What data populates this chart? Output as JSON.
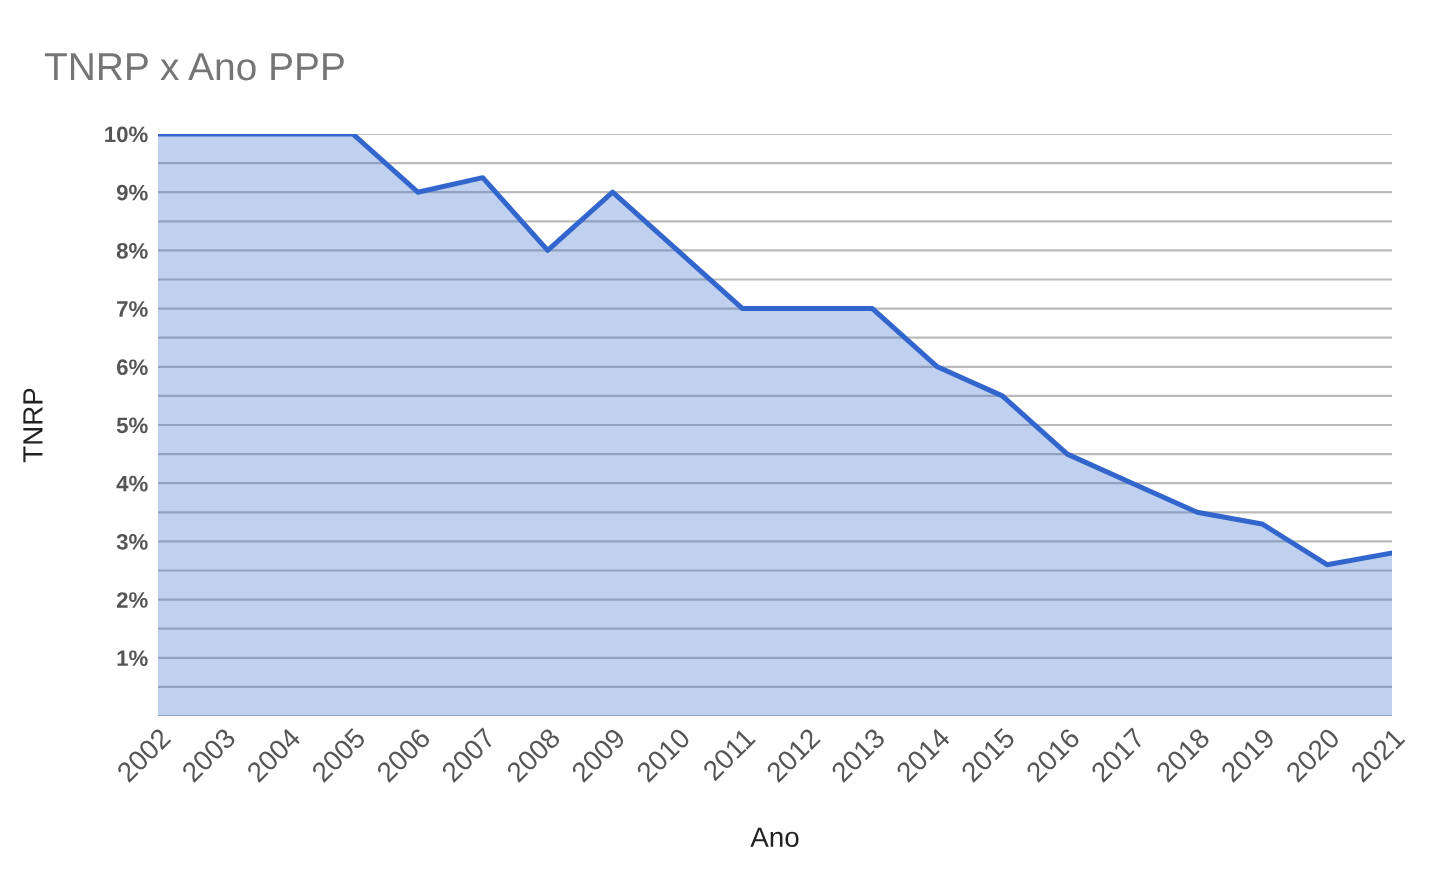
{
  "chart_data": {
    "type": "area",
    "title": "TNRP x Ano PPP",
    "xlabel": "Ano",
    "ylabel": "TNRP",
    "categories": [
      "2002",
      "2003",
      "2004",
      "2005",
      "2006",
      "2007",
      "2008",
      "2009",
      "2010",
      "2011",
      "2012",
      "2013",
      "2014",
      "2015",
      "2016",
      "2017",
      "2018",
      "2019",
      "2020",
      "2021"
    ],
    "series": [
      {
        "color": "#3366cc",
        "values": [
          10,
          10,
          10,
          10,
          9,
          9.25,
          8,
          9,
          8,
          7,
          7,
          7,
          6,
          5.5,
          4.5,
          4,
          3.5,
          3.3,
          2.6,
          2.8
        ]
      }
    ],
    "ylim": [
      0,
      10
    ],
    "yticks": [
      {
        "value": 0,
        "label": null
      },
      {
        "value": 0.5,
        "label": null
      },
      {
        "value": 1,
        "label": "1%"
      },
      {
        "value": 1.5,
        "label": null
      },
      {
        "value": 2,
        "label": "2%"
      },
      {
        "value": 2.5,
        "label": null
      },
      {
        "value": 3,
        "label": "3%"
      },
      {
        "value": 3.5,
        "label": null
      },
      {
        "value": 4,
        "label": "4%"
      },
      {
        "value": 4.5,
        "label": null
      },
      {
        "value": 5,
        "label": "5%"
      },
      {
        "value": 5.5,
        "label": null
      },
      {
        "value": 6,
        "label": "6%"
      },
      {
        "value": 6.5,
        "label": null
      },
      {
        "value": 7,
        "label": "7%"
      },
      {
        "value": 7.5,
        "label": null
      },
      {
        "value": 8,
        "label": "8%"
      },
      {
        "value": 8.5,
        "label": null
      },
      {
        "value": 9,
        "label": "9%"
      },
      {
        "value": 9.5,
        "label": null
      },
      {
        "value": 10,
        "label": "10%"
      }
    ],
    "grid": "y",
    "legend": false
  }
}
